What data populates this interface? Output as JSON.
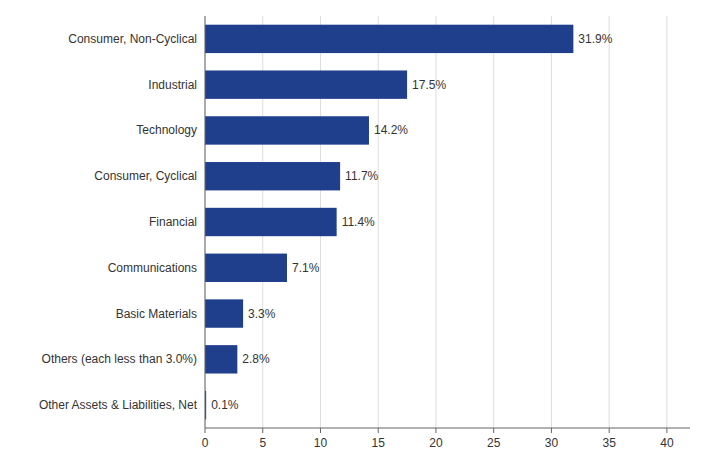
{
  "chart_data": {
    "type": "bar",
    "orientation": "horizontal",
    "categories": [
      "Other Assets & Liabilities, Net",
      "Others (each less than 3.0%)",
      "Basic Materials",
      "Communications",
      "Financial",
      "Consumer, Cyclical",
      "Technology",
      "Industrial",
      "Consumer, Non-Cyclical"
    ],
    "values": [
      0.1,
      2.8,
      3.3,
      7.1,
      11.4,
      11.7,
      14.2,
      17.5,
      31.9
    ],
    "value_labels": [
      "0.1%",
      "2.8%",
      "3.3%",
      "7.1%",
      "11.4%",
      "11.7%",
      "14.2%",
      "17.5%",
      "31.9%"
    ],
    "color": "#1F3E8C",
    "xlim": [
      0,
      42
    ],
    "xticks": [
      0,
      5,
      10,
      15,
      20,
      25,
      30,
      35,
      40
    ],
    "grid": true,
    "data_labels": true
  }
}
